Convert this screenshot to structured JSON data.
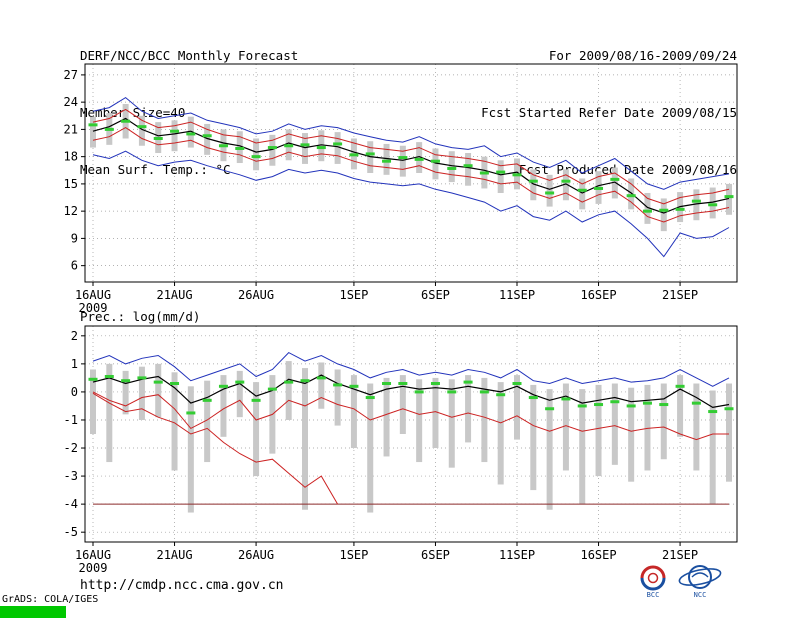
{
  "header": {
    "title": "DERF/NCC/BCC Monthly Forecast",
    "member_size": "Member Size=40",
    "temp_label": "Mean Surf. Temp.: °C",
    "for_range": "For 2009/08/16-2009/09/24",
    "refer_date": "Fcst Started Refer Date 2009/08/15",
    "produced_date": "Fcst Produced Date 2009/08/16"
  },
  "footer": {
    "url": "http://cmdp.ncc.cma.gov.cn",
    "grads_credit": "GrADS: COLA/IGES",
    "logos": [
      {
        "label": "BCC"
      },
      {
        "label": "NCC"
      }
    ]
  },
  "colors": {
    "max_min_line": "#2233bb",
    "inner_envelope_line": "#cc2222",
    "mean_line": "#000000",
    "median_dash": "#33cc33",
    "spread_bar": "#c8c8c8",
    "grid": "#999999",
    "clip_line": "#8b2a2a",
    "grads_box": "#00c800"
  },
  "chart_data": [
    {
      "type": "line",
      "title": "Mean Surf. Temp.: °C",
      "year_label": "2009",
      "n_points": 40,
      "x_tick_labels": [
        "16AUG",
        "21AUG",
        "26AUG",
        "1SEP",
        "6SEP",
        "11SEP",
        "16SEP",
        "21SEP"
      ],
      "x_tick_days": [
        0,
        5,
        10,
        16,
        21,
        26,
        31,
        36
      ],
      "x_sub_label": "2009",
      "ylim": [
        4.2,
        28.2
      ],
      "yticks": [
        6,
        9,
        12,
        15,
        18,
        21,
        24,
        27
      ],
      "legend_position": "none",
      "grid": true,
      "series": [
        {
          "name": "ensemble-max",
          "color": "#2233bb",
          "width": 1,
          "values": [
            23.0,
            23.4,
            24.5,
            23.0,
            22.2,
            22.5,
            22.8,
            22.0,
            21.6,
            21.2,
            20.5,
            20.8,
            21.6,
            21.0,
            21.4,
            21.2,
            20.6,
            20.2,
            19.8,
            19.6,
            20.2,
            19.4,
            19.0,
            18.8,
            19.2,
            18.0,
            18.4,
            17.4,
            16.8,
            17.6,
            16.2,
            17.0,
            17.8,
            16.4,
            15.0,
            14.4,
            15.2,
            15.5,
            15.8,
            16.1
          ]
        },
        {
          "name": "upper-quartile",
          "color": "#cc2222",
          "width": 1,
          "values": [
            21.8,
            22.2,
            23.2,
            22.0,
            21.2,
            21.4,
            21.8,
            21.0,
            20.4,
            20.2,
            19.5,
            19.8,
            20.5,
            20.0,
            20.3,
            20.0,
            19.5,
            19.0,
            18.8,
            18.6,
            19.0,
            18.2,
            18.0,
            17.8,
            17.5,
            17.0,
            17.2,
            16.0,
            15.4,
            16.0,
            15.0,
            15.8,
            16.2,
            15.0,
            13.4,
            12.8,
            13.5,
            13.8,
            14.0,
            14.4
          ]
        },
        {
          "name": "ensemble-mean",
          "color": "#000000",
          "width": 1.2,
          "values": [
            20.8,
            21.3,
            22.2,
            21.0,
            20.3,
            20.5,
            20.8,
            20.0,
            19.5,
            19.2,
            18.5,
            18.8,
            19.5,
            19.0,
            19.3,
            19.1,
            18.5,
            18.0,
            17.8,
            17.6,
            18.0,
            17.3,
            17.0,
            16.8,
            16.5,
            16.0,
            16.3,
            15.0,
            14.4,
            15.0,
            14.0,
            14.8,
            15.2,
            14.0,
            12.4,
            11.8,
            12.5,
            12.8,
            13.0,
            13.4
          ]
        },
        {
          "name": "lower-quartile",
          "color": "#cc2222",
          "width": 1,
          "values": [
            19.8,
            20.2,
            21.2,
            20.0,
            19.3,
            19.5,
            19.8,
            19.0,
            18.5,
            18.2,
            17.5,
            17.8,
            18.5,
            18.0,
            18.3,
            18.1,
            17.5,
            17.0,
            16.8,
            16.6,
            17.0,
            16.3,
            16.0,
            15.8,
            15.5,
            15.0,
            15.2,
            14.0,
            13.4,
            14.0,
            13.0,
            13.8,
            14.2,
            13.0,
            11.4,
            10.8,
            11.5,
            11.8,
            12.0,
            12.4
          ]
        },
        {
          "name": "ensemble-min",
          "color": "#2233bb",
          "width": 1,
          "values": [
            18.2,
            17.8,
            18.6,
            17.6,
            17.0,
            17.4,
            17.6,
            17.0,
            16.5,
            16.0,
            15.4,
            15.8,
            16.6,
            16.2,
            16.5,
            16.2,
            15.6,
            15.2,
            15.0,
            14.8,
            15.0,
            14.4,
            14.0,
            13.5,
            13.0,
            12.0,
            12.6,
            11.4,
            11.0,
            12.0,
            10.8,
            11.6,
            12.0,
            10.6,
            9.0,
            7.0,
            9.6,
            9.0,
            9.2,
            10.2
          ]
        }
      ],
      "bars": {
        "name": "ensemble-spread",
        "color": "#c8c8c8",
        "low": [
          19.0,
          19.3,
          20.0,
          19.2,
          18.4,
          18.6,
          19.0,
          18.2,
          17.5,
          17.3,
          16.5,
          17.0,
          17.6,
          17.2,
          17.5,
          17.2,
          16.6,
          16.2,
          16.0,
          15.8,
          16.2,
          15.5,
          15.2,
          14.8,
          14.5,
          14.0,
          14.4,
          13.2,
          12.5,
          13.2,
          12.2,
          12.8,
          13.4,
          12.2,
          10.6,
          9.8,
          10.8,
          11.0,
          11.2,
          11.6
        ],
        "high": [
          22.4,
          22.8,
          23.8,
          22.5,
          21.8,
          22.0,
          22.4,
          21.6,
          21.0,
          20.8,
          20.0,
          20.4,
          21.0,
          20.6,
          20.9,
          20.7,
          20.0,
          19.7,
          19.4,
          19.2,
          19.6,
          18.9,
          18.6,
          18.4,
          18.0,
          17.6,
          17.8,
          16.6,
          16.0,
          16.6,
          15.6,
          16.4,
          16.8,
          15.6,
          14.0,
          13.4,
          14.1,
          14.4,
          14.6,
          15.0
        ]
      },
      "dashes": {
        "name": "ensemble-median",
        "color": "#33cc33",
        "values": [
          21.5,
          21.0,
          21.9,
          21.3,
          20.0,
          20.8,
          20.5,
          20.3,
          19.2,
          18.9,
          18.0,
          19.0,
          19.2,
          19.3,
          19.0,
          19.4,
          18.2,
          18.3,
          17.5,
          17.9,
          17.7,
          17.5,
          16.7,
          17.0,
          16.2,
          16.3,
          16.0,
          15.3,
          14.0,
          15.3,
          14.3,
          14.5,
          15.5,
          13.7,
          12.0,
          12.1,
          12.2,
          13.1,
          12.7,
          13.6
        ]
      }
    },
    {
      "type": "line",
      "title": "Prec.: log(mm/d)",
      "year_label": "2009",
      "n_points": 40,
      "x_tick_labels": [
        "16AUG",
        "21AUG",
        "26AUG",
        "1SEP",
        "6SEP",
        "11SEP",
        "16SEP",
        "21SEP"
      ],
      "x_tick_days": [
        0,
        5,
        10,
        16,
        21,
        26,
        31,
        36
      ],
      "x_sub_label": "2009",
      "ylim": [
        -5.35,
        2.35
      ],
      "yticks": [
        -5,
        -4,
        -3,
        -2,
        -1,
        0,
        1,
        2
      ],
      "legend_position": "none",
      "grid": true,
      "floor_line": {
        "name": "clip-floor",
        "value": -4,
        "color": "#8b2a2a"
      },
      "series": [
        {
          "name": "ensemble-max",
          "color": "#2233bb",
          "width": 1,
          "values": [
            1.1,
            1.3,
            1.0,
            1.2,
            1.3,
            0.9,
            0.4,
            0.6,
            0.8,
            1.0,
            0.55,
            0.8,
            1.4,
            1.1,
            1.3,
            1.0,
            0.8,
            0.5,
            0.7,
            0.8,
            0.6,
            0.7,
            0.6,
            0.8,
            0.7,
            0.5,
            0.8,
            0.4,
            0.3,
            0.5,
            0.3,
            0.4,
            0.5,
            0.35,
            0.4,
            0.5,
            0.8,
            0.5,
            0.2,
            0.5
          ]
        },
        {
          "name": "ensemble-mean",
          "color": "#000000",
          "width": 1.2,
          "values": [
            0.35,
            0.5,
            0.3,
            0.45,
            0.55,
            0.15,
            -0.4,
            -0.2,
            0.1,
            0.3,
            -0.15,
            0.05,
            0.45,
            0.3,
            0.6,
            0.3,
            0.1,
            -0.1,
            0.1,
            0.2,
            0.1,
            0.15,
            0.1,
            0.2,
            0.1,
            0.0,
            0.2,
            -0.1,
            -0.3,
            -0.15,
            -0.4,
            -0.3,
            -0.2,
            -0.35,
            -0.3,
            -0.25,
            0.1,
            -0.2,
            -0.55,
            -0.45
          ]
        },
        {
          "name": "lower-envelope",
          "color": "#cc2222",
          "width": 1,
          "values": [
            0.0,
            -0.3,
            -0.5,
            -0.2,
            -0.1,
            -0.6,
            -1.3,
            -1.0,
            -0.6,
            -0.3,
            -1.0,
            -0.8,
            -0.3,
            -0.5,
            -0.2,
            -0.45,
            -0.6,
            -1.0,
            -0.8,
            -0.6,
            -0.8,
            -0.7,
            -0.9,
            -0.75,
            -0.9,
            -1.1,
            -0.85,
            -1.2,
            -1.4,
            -1.2,
            -1.4,
            -1.3,
            -1.2,
            -1.4,
            -1.3,
            -1.25,
            -1.5,
            -1.7,
            -1.5,
            -1.5
          ]
        },
        {
          "name": "descending-member",
          "color": "#cc2222",
          "width": 1,
          "values": [
            -0.05,
            -0.4,
            -0.7,
            -0.6,
            -0.9,
            -1.1,
            -1.5,
            -1.3,
            -1.8,
            -2.2,
            -2.5,
            -2.4,
            -2.9,
            -3.4,
            -3.0,
            -4.0,
            null,
            null,
            null,
            null,
            null,
            null,
            null,
            null,
            null,
            null,
            null,
            null,
            null,
            null,
            null,
            null,
            null,
            null,
            null,
            null,
            null,
            null,
            null,
            null
          ]
        }
      ],
      "bars": {
        "name": "ensemble-spread",
        "color": "#c8c8c8",
        "low": [
          -1.5,
          -2.5,
          -0.8,
          -1.0,
          -0.9,
          -2.8,
          -4.3,
          -2.5,
          -1.6,
          -0.9,
          -3.0,
          -2.2,
          -1.0,
          -4.2,
          -0.6,
          -1.2,
          -2.0,
          -4.3,
          -2.3,
          -1.5,
          -2.5,
          -2.0,
          -2.7,
          -1.8,
          -2.5,
          -3.3,
          -1.7,
          -3.5,
          -4.2,
          -2.8,
          -4.0,
          -3.0,
          -2.6,
          -3.2,
          -2.8,
          -2.4,
          -1.6,
          -2.8,
          -4.0,
          -3.2
        ],
        "high": [
          0.8,
          1.0,
          0.75,
          0.9,
          1.0,
          0.7,
          0.2,
          0.4,
          0.6,
          0.75,
          0.35,
          0.6,
          1.1,
          0.85,
          1.05,
          0.8,
          0.6,
          0.3,
          0.5,
          0.6,
          0.45,
          0.5,
          0.45,
          0.6,
          0.5,
          0.35,
          0.6,
          0.25,
          0.1,
          0.3,
          0.1,
          0.25,
          0.3,
          0.15,
          0.25,
          0.3,
          0.6,
          0.3,
          0.05,
          0.3
        ]
      },
      "dashes": {
        "name": "ensemble-median",
        "color": "#33cc33",
        "values": [
          0.45,
          0.55,
          0.4,
          0.5,
          0.35,
          0.3,
          -0.75,
          -0.3,
          0.2,
          0.35,
          -0.3,
          0.1,
          0.35,
          0.4,
          0.5,
          0.25,
          0.2,
          -0.2,
          0.3,
          0.3,
          0.0,
          0.3,
          0.0,
          0.35,
          0.0,
          -0.1,
          0.3,
          -0.2,
          -0.6,
          -0.25,
          -0.5,
          -0.45,
          -0.35,
          -0.5,
          -0.4,
          -0.45,
          0.2,
          -0.4,
          -0.7,
          -0.6
        ]
      }
    }
  ]
}
